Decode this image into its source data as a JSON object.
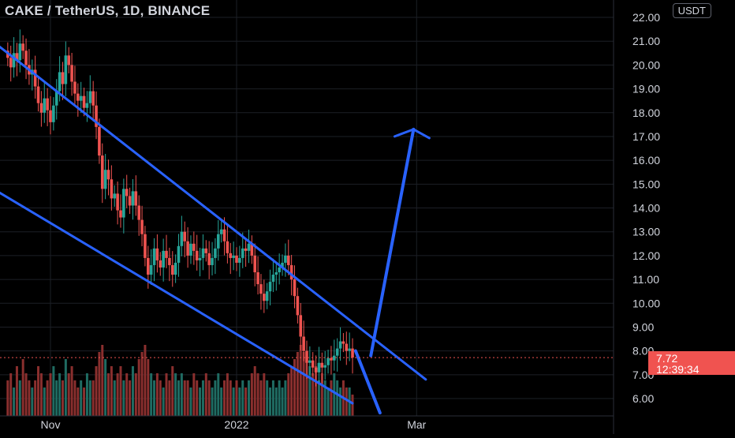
{
  "header": {
    "title": "CAKE / TetherUS, 1D, BINANCE",
    "currency_button": "USDT"
  },
  "price_tag": {
    "last_price": "7.72",
    "countdown": "12:39:34"
  },
  "colors": {
    "background": "#000000",
    "up": "#26a69a",
    "down": "#ef5350",
    "volume_up": "#1f6b62",
    "volume_down": "#8a2f2e",
    "drawing": "#2962ff",
    "grid": "#1c1f26",
    "axis_text": "#d1d4dc"
  },
  "chart_data": {
    "type": "candlestick",
    "title": "CAKE / TetherUS, 1D, BINANCE",
    "y_axis": {
      "side": "right",
      "ticks": [
        "22.00",
        "21.00",
        "20.00",
        "19.00",
        "18.00",
        "17.00",
        "16.00",
        "15.00",
        "14.00",
        "13.00",
        "12.00",
        "11.00",
        "10.00",
        "9.00",
        "8.00",
        "7.00",
        "6.00"
      ],
      "range": [
        5.3,
        22.2
      ]
    },
    "x_axis": {
      "ticks": [
        {
          "label": "Nov",
          "date": "2021-11-01"
        },
        {
          "label": "2022",
          "date": "2022-01-01"
        },
        {
          "label": "Mar",
          "date": "2022-03-01"
        }
      ]
    },
    "grid": true,
    "last_price": 7.72,
    "countdown": "12:39:34",
    "series": {
      "start_date": "2021-10-18",
      "closes": [
        20.3,
        19.9,
        20.5,
        20.2,
        20.9,
        20.6,
        20.0,
        19.6,
        19.8,
        19.1,
        18.4,
        18.0,
        18.6,
        18.1,
        17.6,
        18.3,
        18.9,
        19.7,
        19.2,
        20.4,
        20.0,
        19.3,
        18.8,
        18.5,
        18.7,
        18.2,
        18.4,
        18.9,
        18.3,
        17.4,
        16.2,
        14.8,
        15.6,
        15.2,
        14.4,
        14.6,
        13.9,
        13.6,
        14.8,
        14.5,
        14.1,
        14.7,
        14.1,
        13.5,
        12.9,
        11.9,
        11.2,
        11.6,
        12.3,
        11.8,
        11.5,
        12.2,
        11.9,
        11.6,
        11.2,
        11.7,
        12.4,
        13.0,
        12.6,
        12.0,
        12.5,
        12.2,
        11.8,
        11.9,
        12.3,
        12.1,
        11.6,
        11.9,
        12.3,
        12.9,
        13.1,
        12.6,
        12.1,
        11.9,
        12.0,
        11.7,
        11.9,
        12.3,
        12.2,
        12.5,
        12.0,
        11.3,
        10.8,
        10.4,
        10.1,
        10.5,
        10.9,
        11.2,
        11.3,
        11.5,
        11.7,
        12.0,
        11.6,
        11.0,
        10.3,
        9.5,
        8.6,
        8.0,
        7.5,
        7.6,
        7.3,
        7.1,
        7.5,
        7.3,
        7.4,
        7.7,
        7.6,
        7.8,
        8.1,
        8.4,
        8.3,
        8.0,
        8.1,
        7.72
      ],
      "volumes": [
        0.5,
        0.6,
        0.4,
        0.7,
        0.5,
        0.8,
        0.6,
        0.5,
        0.4,
        0.5,
        0.7,
        0.6,
        0.4,
        0.5,
        0.6,
        0.7,
        0.5,
        0.6,
        0.5,
        0.8,
        0.6,
        0.7,
        0.5,
        0.4,
        0.5,
        0.4,
        0.6,
        0.5,
        0.5,
        0.7,
        0.9,
        1.0,
        0.8,
        0.6,
        0.7,
        0.5,
        0.6,
        0.7,
        0.5,
        0.6,
        0.5,
        0.7,
        0.6,
        0.8,
        0.9,
        1.0,
        0.8,
        0.6,
        0.5,
        0.6,
        0.5,
        0.4,
        0.6,
        0.5,
        0.7,
        0.6,
        0.5,
        0.6,
        0.5,
        0.5,
        0.4,
        0.6,
        0.5,
        0.4,
        0.5,
        0.6,
        0.5,
        0.4,
        0.5,
        0.6,
        0.4,
        0.5,
        0.6,
        0.5,
        0.4,
        0.5,
        0.4,
        0.5,
        0.4,
        0.5,
        0.6,
        0.7,
        0.6,
        0.5,
        0.6,
        0.5,
        0.4,
        0.5,
        0.4,
        0.5,
        0.4,
        0.5,
        0.6,
        0.7,
        0.8,
        0.9,
        1.0,
        0.9,
        0.8,
        0.7,
        0.6,
        0.7,
        0.5,
        0.6,
        0.5,
        0.4,
        0.5,
        0.6,
        0.5,
        0.4,
        0.5,
        0.4,
        0.4,
        0.3
      ]
    },
    "drawings": [
      {
        "name": "upper-channel-line",
        "from": {
          "date": "2021-10-08",
          "price": 21.5
        },
        "to": {
          "date": "2022-03-04",
          "price": 6.8
        }
      },
      {
        "name": "lower-channel-line",
        "from": {
          "date": "2021-10-08",
          "price": 15.2
        },
        "to": {
          "date": "2022-02-08",
          "price": 5.8
        }
      },
      {
        "name": "projection-up-arrow",
        "from": {
          "date": "2022-02-14",
          "price": 7.8
        },
        "to": {
          "date": "2022-02-28",
          "price": 17.3
        }
      },
      {
        "name": "projection-down-line",
        "from": {
          "date": "2022-02-09",
          "price": 8.0
        },
        "to": {
          "date": "2022-02-17",
          "price": 5.4
        }
      }
    ]
  }
}
